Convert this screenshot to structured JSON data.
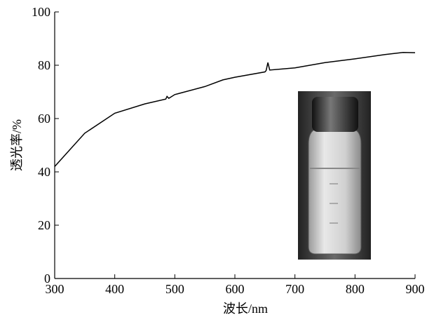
{
  "chart_data": {
    "type": "line",
    "x_label": "波长/nm",
    "y_label": "透光率/%",
    "x": [
      300,
      320,
      350,
      400,
      450,
      485,
      487,
      490,
      500,
      550,
      580,
      600,
      650,
      652,
      655,
      658,
      700,
      750,
      800,
      850,
      880,
      900
    ],
    "values": [
      42,
      47,
      54.5,
      62,
      65.5,
      67.3,
      68.3,
      67.6,
      69,
      72,
      74.5,
      75.5,
      77.5,
      78,
      81,
      78.2,
      79,
      81,
      82.4,
      84,
      84.8,
      84.7
    ],
    "color": "#000000",
    "xlim": [
      300,
      900
    ],
    "xticks": [
      300,
      400,
      500,
      600,
      700,
      800,
      900
    ],
    "ylim": [
      0,
      100
    ],
    "yticks": [
      0,
      20,
      40,
      60,
      80,
      100
    ]
  }
}
